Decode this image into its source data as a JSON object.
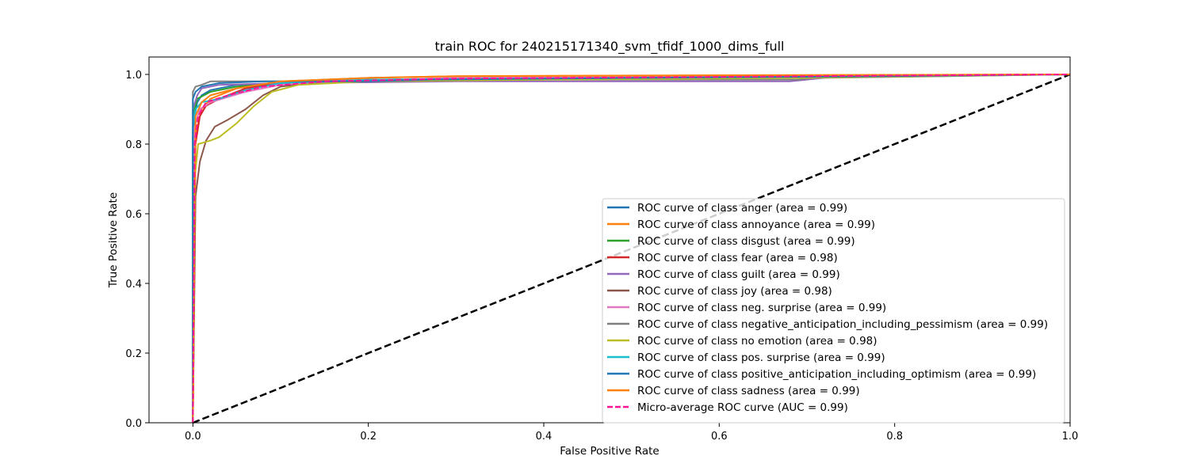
{
  "chart_data": {
    "type": "line",
    "title": "train ROC for 240215171340_svm_tfidf_1000_dims_full",
    "xlabel": "False Positive Rate",
    "ylabel": "True Positive Rate",
    "xlim": [
      -0.05,
      1.0
    ],
    "ylim": [
      0.0,
      1.05
    ],
    "xticks": [
      "0.0",
      "0.2",
      "0.4",
      "0.6",
      "0.8",
      "1.0"
    ],
    "yticks": [
      "0.0",
      "0.2",
      "0.4",
      "0.6",
      "0.8",
      "1.0"
    ],
    "grid": false,
    "legend_position": "lower right",
    "series": [
      {
        "name": "ROC curve of class anger (area = 0.99)",
        "color": "#1f77b4",
        "dash": "solid",
        "points": [
          [
            0,
            0
          ],
          [
            0,
            0.82
          ],
          [
            0.002,
            0.88
          ],
          [
            0.005,
            0.92
          ],
          [
            0.01,
            0.94
          ],
          [
            0.02,
            0.955
          ],
          [
            0.05,
            0.97
          ],
          [
            0.1,
            0.975
          ],
          [
            0.2,
            0.98
          ],
          [
            0.3,
            0.985
          ],
          [
            0.5,
            0.99
          ],
          [
            0.7,
            0.995
          ],
          [
            1,
            1
          ]
        ]
      },
      {
        "name": "ROC curve of class annoyance (area = 0.99)",
        "color": "#ff7f0e",
        "dash": "solid",
        "points": [
          [
            0,
            0
          ],
          [
            0.002,
            0.78
          ],
          [
            0.005,
            0.85
          ],
          [
            0.01,
            0.9
          ],
          [
            0.02,
            0.93
          ],
          [
            0.05,
            0.96
          ],
          [
            0.1,
            0.98
          ],
          [
            0.2,
            0.99
          ],
          [
            0.3,
            0.995
          ],
          [
            0.5,
            0.997
          ],
          [
            1,
            1
          ]
        ]
      },
      {
        "name": "ROC curve of class disgust (area = 0.99)",
        "color": "#2ca02c",
        "dash": "solid",
        "points": [
          [
            0,
            0
          ],
          [
            0,
            0.85
          ],
          [
            0.002,
            0.9
          ],
          [
            0.005,
            0.93
          ],
          [
            0.02,
            0.95
          ],
          [
            0.05,
            0.965
          ],
          [
            0.1,
            0.975
          ],
          [
            0.2,
            0.98
          ],
          [
            0.4,
            0.985
          ],
          [
            0.6,
            0.99
          ],
          [
            0.83,
            0.995
          ],
          [
            1,
            1
          ]
        ]
      },
      {
        "name": "ROC curve of class fear (area = 0.98)",
        "color": "#d62728",
        "dash": "solid",
        "points": [
          [
            0,
            0
          ],
          [
            0.003,
            0.8
          ],
          [
            0.008,
            0.88
          ],
          [
            0.015,
            0.91
          ],
          [
            0.03,
            0.93
          ],
          [
            0.06,
            0.96
          ],
          [
            0.1,
            0.975
          ],
          [
            0.2,
            0.985
          ],
          [
            0.4,
            0.99
          ],
          [
            0.7,
            0.995
          ],
          [
            1,
            1
          ]
        ]
      },
      {
        "name": "ROC curve of class guilt (area = 0.99)",
        "color": "#9467bd",
        "dash": "solid",
        "points": [
          [
            0,
            0
          ],
          [
            0,
            0.9
          ],
          [
            0.005,
            0.94
          ],
          [
            0.01,
            0.96
          ],
          [
            0.03,
            0.97
          ],
          [
            0.1,
            0.975
          ],
          [
            0.3,
            0.98
          ],
          [
            0.5,
            0.98
          ],
          [
            0.68,
            0.98
          ],
          [
            0.72,
            0.99
          ],
          [
            1,
            1
          ]
        ]
      },
      {
        "name": "ROC curve of class joy (area = 0.98)",
        "color": "#8c564b",
        "dash": "solid",
        "points": [
          [
            0,
            0
          ],
          [
            0.003,
            0.65
          ],
          [
            0.008,
            0.75
          ],
          [
            0.015,
            0.81
          ],
          [
            0.025,
            0.85
          ],
          [
            0.04,
            0.87
          ],
          [
            0.06,
            0.9
          ],
          [
            0.08,
            0.94
          ],
          [
            0.1,
            0.965
          ],
          [
            0.15,
            0.98
          ],
          [
            0.3,
            0.99
          ],
          [
            0.6,
            0.995
          ],
          [
            1,
            1
          ]
        ]
      },
      {
        "name": "ROC curve of class neg. surprise (area = 0.99)",
        "color": "#e377c2",
        "dash": "solid",
        "points": [
          [
            0,
            0
          ],
          [
            0.002,
            0.85
          ],
          [
            0.008,
            0.9
          ],
          [
            0.02,
            0.92
          ],
          [
            0.04,
            0.935
          ],
          [
            0.06,
            0.95
          ],
          [
            0.1,
            0.97
          ],
          [
            0.15,
            0.98
          ],
          [
            0.3,
            0.99
          ],
          [
            0.6,
            0.995
          ],
          [
            1,
            1
          ]
        ]
      },
      {
        "name": "ROC curve of class negative_anticipation_including_pessimism (area = 0.99)",
        "color": "#7f7f7f",
        "dash": "solid",
        "points": [
          [
            0,
            0
          ],
          [
            0,
            0.95
          ],
          [
            0.003,
            0.965
          ],
          [
            0.01,
            0.97
          ],
          [
            0.02,
            0.98
          ],
          [
            0.1,
            0.98
          ],
          [
            0.3,
            0.985
          ],
          [
            0.6,
            0.985
          ],
          [
            0.69,
            0.985
          ],
          [
            0.72,
            0.995
          ],
          [
            1,
            1
          ]
        ]
      },
      {
        "name": "ROC curve of class no emotion (area = 0.98)",
        "color": "#bcbd22",
        "dash": "solid",
        "points": [
          [
            0,
            0
          ],
          [
            0.002,
            0.7
          ],
          [
            0.006,
            0.8
          ],
          [
            0.02,
            0.81
          ],
          [
            0.03,
            0.82
          ],
          [
            0.05,
            0.86
          ],
          [
            0.07,
            0.91
          ],
          [
            0.09,
            0.95
          ],
          [
            0.12,
            0.97
          ],
          [
            0.2,
            0.98
          ],
          [
            0.4,
            0.985
          ],
          [
            0.7,
            0.99
          ],
          [
            1,
            1
          ]
        ]
      },
      {
        "name": "ROC curve of class pos. surprise (area = 0.99)",
        "color": "#17becf",
        "dash": "solid",
        "points": [
          [
            0,
            0
          ],
          [
            0,
            0.85
          ],
          [
            0.003,
            0.9
          ],
          [
            0.01,
            0.92
          ],
          [
            0.03,
            0.93
          ],
          [
            0.06,
            0.955
          ],
          [
            0.1,
            0.975
          ],
          [
            0.2,
            0.985
          ],
          [
            0.5,
            0.99
          ],
          [
            1,
            1
          ]
        ]
      },
      {
        "name": "ROC curve of class positive_anticipation_including_optimism (area = 0.99)",
        "color": "#1f77b4",
        "dash": "solid",
        "points": [
          [
            0,
            0
          ],
          [
            0,
            0.93
          ],
          [
            0.003,
            0.95
          ],
          [
            0.01,
            0.965
          ],
          [
            0.03,
            0.975
          ],
          [
            0.08,
            0.98
          ],
          [
            0.2,
            0.98
          ],
          [
            0.27,
            0.985
          ],
          [
            0.5,
            0.99
          ],
          [
            0.8,
            0.995
          ],
          [
            1,
            1
          ]
        ]
      },
      {
        "name": "ROC curve of class sadness (area = 0.99)",
        "color": "#ff7f0e",
        "dash": "solid",
        "points": [
          [
            0,
            0
          ],
          [
            0.003,
            0.88
          ],
          [
            0.01,
            0.92
          ],
          [
            0.02,
            0.94
          ],
          [
            0.05,
            0.96
          ],
          [
            0.1,
            0.98
          ],
          [
            0.2,
            0.99
          ],
          [
            0.3,
            0.995
          ],
          [
            0.6,
            0.997
          ],
          [
            1,
            1
          ]
        ]
      },
      {
        "name": "Micro-average ROC curve (AUC = 0.99)",
        "color": "#ff1493",
        "dash": "dashed",
        "points": [
          [
            0,
            0
          ],
          [
            0.002,
            0.8
          ],
          [
            0.006,
            0.88
          ],
          [
            0.015,
            0.92
          ],
          [
            0.04,
            0.94
          ],
          [
            0.08,
            0.965
          ],
          [
            0.15,
            0.98
          ],
          [
            0.3,
            0.988
          ],
          [
            0.6,
            0.993
          ],
          [
            1,
            1
          ]
        ]
      }
    ],
    "reference_line": {
      "color": "#000000",
      "dash": "dashed",
      "points": [
        [
          0,
          0
        ],
        [
          1,
          1
        ]
      ]
    }
  }
}
